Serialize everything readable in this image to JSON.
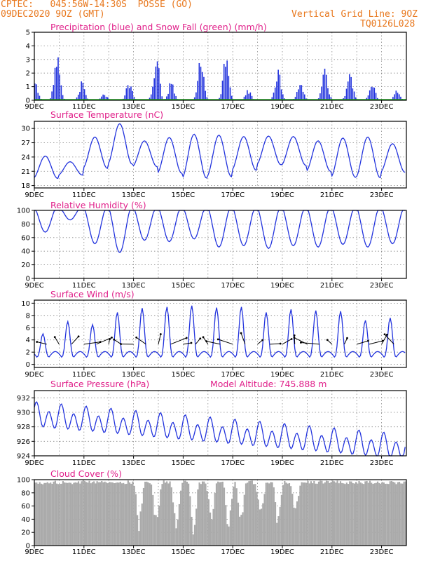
{
  "header": {
    "line1_left": "CPTEC:   045:56W-14:30S  POSSE (GO)",
    "line2_left": "09DEC2020 9OZ (GMT)",
    "line2_right": "Vertical Grid Line: 9OZ",
    "line3_right": "TQ0126L028"
  },
  "colors": {
    "header": "#e8781e",
    "title": "#e0208a",
    "series": "#2233dd",
    "snow": "#22aa22",
    "cloud": "#aaaaaa"
  },
  "chart_data": [
    {
      "type": "bar",
      "title": "Precipitation (blue) and Snow Fall (green) (mm/h)",
      "ylim": [
        0,
        5
      ],
      "yticks": [
        0,
        1,
        2,
        3,
        4,
        5
      ],
      "xticks": [
        "9DEC",
        "11DEC",
        "13DEC",
        "15DEC",
        "17DEC",
        "19DEC",
        "21DEC",
        "23DEC"
      ],
      "events": [
        {
          "day": 9.0,
          "peak": 1.6
        },
        {
          "day": 9.9,
          "peak": 3.8
        },
        {
          "day": 10.9,
          "peak": 1.5
        },
        {
          "day": 11.8,
          "peak": 0.5
        },
        {
          "day": 12.8,
          "peak": 1.5
        },
        {
          "day": 13.9,
          "peak": 3.6
        },
        {
          "day": 14.5,
          "peak": 1.5
        },
        {
          "day": 15.7,
          "peak": 3.7
        },
        {
          "day": 16.7,
          "peak": 3.8
        },
        {
          "day": 17.6,
          "peak": 0.8
        },
        {
          "day": 18.8,
          "peak": 2.5
        },
        {
          "day": 19.7,
          "peak": 1.6
        },
        {
          "day": 20.7,
          "peak": 2.5
        },
        {
          "day": 21.7,
          "peak": 2.3
        },
        {
          "day": 22.6,
          "peak": 1.4
        },
        {
          "day": 23.6,
          "peak": 0.8
        }
      ]
    },
    {
      "type": "line",
      "title": "Surface Temperature (nC)",
      "ylim": [
        17.5,
        31.5
      ],
      "yticks": [
        18,
        21,
        24,
        27,
        30
      ],
      "xticks": [
        "9DEC",
        "11DEC",
        "13DEC",
        "15DEC",
        "17DEC",
        "19DEC",
        "21DEC",
        "23DEC"
      ],
      "base": 22,
      "amp": 4,
      "maxima": [
        24.2,
        23.0,
        28.2,
        31.0,
        27.4,
        28.1,
        28.8,
        28.6,
        28.3,
        28.4,
        28.3,
        27.4,
        28.0,
        28.2,
        26.8
      ]
    },
    {
      "type": "line",
      "title": "Relative Humidity (%)",
      "ylim": [
        0,
        100
      ],
      "yticks": [
        0,
        20,
        40,
        60,
        80,
        100
      ],
      "xticks": [
        "9DEC",
        "11DEC",
        "13DEC",
        "15DEC",
        "17DEC",
        "19DEC",
        "21DEC",
        "23DEC"
      ],
      "minima": [
        62,
        80,
        45,
        32,
        50,
        48,
        52,
        40,
        42,
        38,
        42,
        40,
        44,
        40,
        45
      ]
    },
    {
      "type": "line",
      "title": "Surface Wind (m/s)",
      "ylim": [
        -0.5,
        10.5
      ],
      "yticks": [
        0,
        2,
        4,
        6,
        8,
        10
      ],
      "xticks": [
        "9DEC",
        "11DEC",
        "13DEC",
        "15DEC",
        "17DEC",
        "19DEC",
        "21DEC",
        "23DEC"
      ],
      "maxima": [
        5.0,
        7.0,
        6.5,
        8.5,
        9.2,
        9.4,
        9.6,
        9.3,
        9.4,
        8.5,
        9.0,
        8.8,
        8.7,
        7.2,
        7.6
      ]
    },
    {
      "type": "line",
      "title": "Surface Pressure (hPa)",
      "subtitle": "Model Altitude: 745.888  m",
      "ylim": [
        924,
        933
      ],
      "yticks": [
        924,
        926,
        928,
        930,
        932
      ],
      "xticks": [
        "9DEC",
        "11DEC",
        "13DEC",
        "15DEC",
        "17DEC",
        "19DEC",
        "21DEC",
        "23DEC"
      ],
      "trend": [
        929.5,
        925.0
      ]
    },
    {
      "type": "bar",
      "title": "Cloud Cover (%)",
      "ylim": [
        0,
        100
      ],
      "yticks": [
        0,
        20,
        40,
        60,
        80,
        100
      ],
      "xticks": [
        "9DEC",
        "11DEC",
        "13DEC",
        "15DEC",
        "17DEC",
        "19DEC",
        "21DEC",
        "23DEC"
      ],
      "dips": [
        {
          "day": 13.2,
          "low": 20
        },
        {
          "day": 13.9,
          "low": 10
        },
        {
          "day": 14.7,
          "low": 5
        },
        {
          "day": 15.4,
          "low": 10
        },
        {
          "day": 16.1,
          "low": 20
        },
        {
          "day": 16.8,
          "low": 15
        },
        {
          "day": 17.3,
          "low": 30
        },
        {
          "day": 18.1,
          "low": 25
        },
        {
          "day": 18.8,
          "low": 15
        },
        {
          "day": 19.5,
          "low": 40
        }
      ]
    }
  ]
}
